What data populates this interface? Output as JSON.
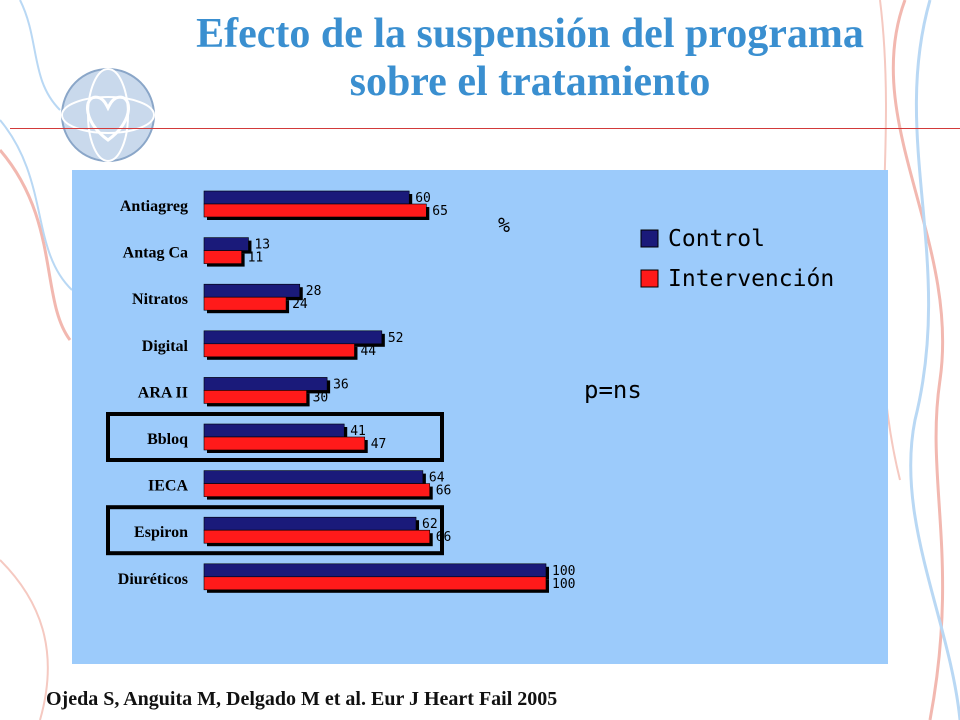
{
  "title_line1": "Efecto de la suspensión del programa",
  "title_line2": "sobre el tratamiento",
  "citation": "Ojeda S, Anguita M, Delgado M et al. Eur J Heart Fail 2005",
  "colors": {
    "title": "#3a8fd0",
    "panel": "#9ccbfb",
    "control": "#1a1a7a",
    "intervencion": "#ff1a1a",
    "rule": "#d23a3a"
  },
  "chart_data": {
    "type": "bar",
    "orientation": "horizontal",
    "unit_label": "%",
    "annotation": "p=ns",
    "categories": [
      "Antiagreg",
      "Antag Ca",
      "Nitratos",
      "Digital",
      "ARA II",
      "Bbloq",
      "IECA",
      "Espiron",
      "Diuréticos"
    ],
    "series": [
      {
        "name": "Control",
        "values": [
          60,
          13,
          28,
          52,
          36,
          41,
          64,
          62,
          100
        ]
      },
      {
        "name": "Intervención",
        "values": [
          65,
          11,
          24,
          44,
          30,
          47,
          66,
          66,
          100
        ]
      }
    ],
    "value_labels": {
      "Control": [
        "60",
        "13",
        "28",
        "52",
        "36",
        "41",
        "64",
        "62",
        "100"
      ],
      "Intervención": [
        "65",
        "11",
        "24",
        "44",
        "30",
        "47",
        "66",
        "66",
        "100"
      ]
    },
    "highlighted_categories": [
      "Bbloq",
      "Espiron"
    ],
    "legend_position": "top-right",
    "xlim": [
      0,
      100
    ],
    "grid": false
  }
}
